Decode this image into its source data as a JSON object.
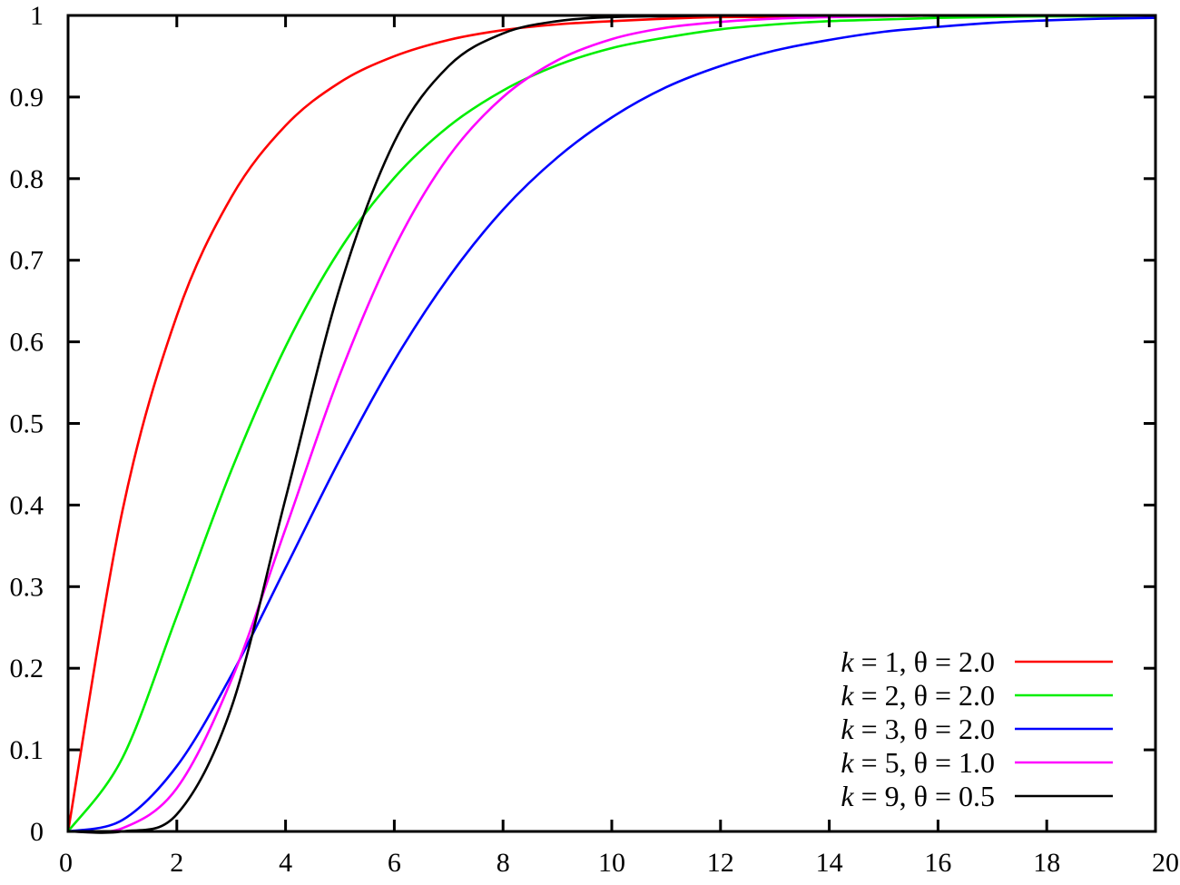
{
  "chart_data": {
    "type": "line",
    "title": "",
    "xlabel": "",
    "ylabel": "",
    "xlim": [
      0,
      20
    ],
    "ylim": [
      0,
      1
    ],
    "x_ticks": [
      0,
      2,
      4,
      6,
      8,
      10,
      12,
      14,
      16,
      18,
      20
    ],
    "y_ticks": [
      0,
      0.1,
      0.2,
      0.3,
      0.4,
      0.5,
      0.6,
      0.7,
      0.8,
      0.9,
      1
    ],
    "x_tick_labels": [
      "0",
      "2",
      "4",
      "6",
      "8",
      "10",
      "12",
      "14",
      "16",
      "18",
      "20"
    ],
    "y_tick_labels": [
      "0",
      "0.1",
      "0.2",
      "0.3",
      "0.4",
      "0.5",
      "0.6",
      "0.7",
      "0.8",
      "0.9",
      "1"
    ],
    "grid": false,
    "legend_position": "bottom-right",
    "x": [
      0,
      1,
      2,
      3,
      4,
      5,
      6,
      7,
      8,
      9,
      10,
      11,
      12,
      13,
      14,
      15,
      16,
      17,
      18,
      19,
      20
    ],
    "series": [
      {
        "name_var": "k",
        "name_eq": " = 1, θ = 2.0",
        "color": "#ff0000",
        "values": [
          0,
          0.393,
          0.632,
          0.777,
          0.865,
          0.918,
          0.95,
          0.97,
          0.982,
          0.989,
          0.993,
          0.996,
          0.998,
          0.998,
          0.999,
          0.999,
          1,
          1,
          1,
          1,
          1
        ]
      },
      {
        "name_var": "k",
        "name_eq": " = 2, θ = 2.0",
        "color": "#00ee00",
        "values": [
          0,
          0.09,
          0.264,
          0.442,
          0.594,
          0.713,
          0.801,
          0.864,
          0.908,
          0.939,
          0.96,
          0.973,
          0.983,
          0.989,
          0.993,
          0.995,
          0.997,
          0.998,
          0.999,
          0.999,
          1
        ]
      },
      {
        "name_var": "k",
        "name_eq": " = 3, θ = 2.0",
        "color": "#0000ff",
        "values": [
          0,
          0.014,
          0.08,
          0.191,
          0.323,
          0.456,
          0.577,
          0.679,
          0.762,
          0.826,
          0.875,
          0.912,
          0.938,
          0.957,
          0.97,
          0.98,
          0.986,
          0.991,
          0.994,
          0.996,
          0.997
        ]
      },
      {
        "name_var": "k",
        "name_eq": " = 5, θ = 1.0",
        "color": "#ff00ff",
        "values": [
          0,
          0.004,
          0.053,
          0.185,
          0.371,
          0.56,
          0.715,
          0.827,
          0.9,
          0.945,
          0.971,
          0.985,
          0.992,
          0.996,
          0.998,
          0.999,
          1,
          1,
          1,
          1,
          1
        ]
      },
      {
        "name_var": "k",
        "name_eq": " = 9, θ = 0.5",
        "color": "#000000",
        "values": [
          0,
          0,
          0.021,
          0.151,
          0.408,
          0.667,
          0.845,
          0.938,
          0.978,
          0.993,
          0.998,
          0.999,
          1,
          1,
          1,
          1,
          1,
          1,
          1,
          1,
          1
        ]
      }
    ]
  }
}
